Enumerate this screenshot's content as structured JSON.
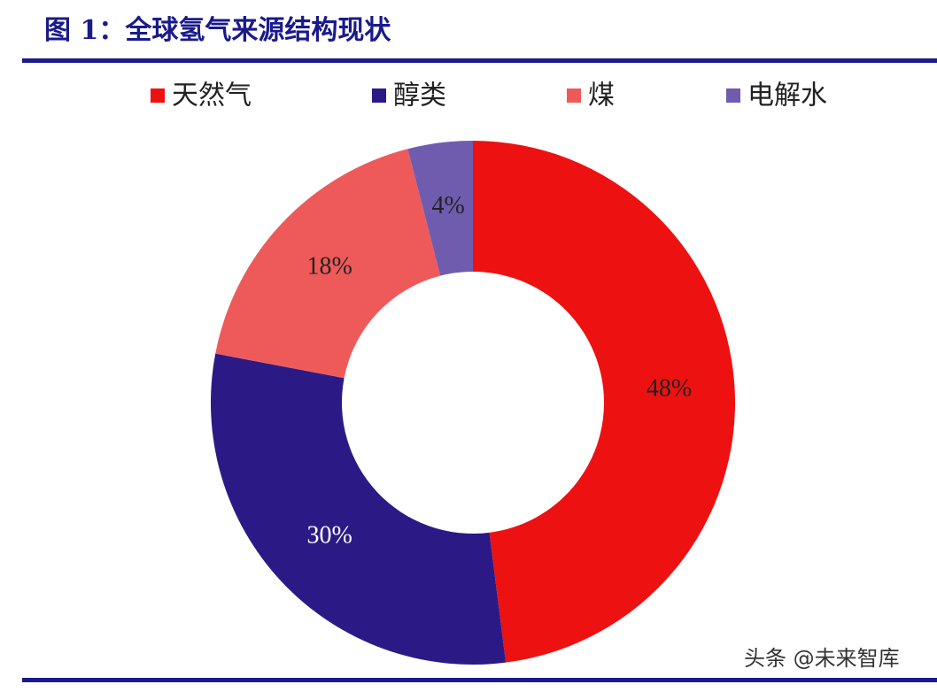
{
  "chart_data": {
    "type": "pie",
    "title": "图 1：全球氢气来源结构现状",
    "categories": [
      "天然气",
      "醇类",
      "煤",
      "电解水"
    ],
    "values": [
      48,
      30,
      18,
      4
    ],
    "value_labels": [
      "48%",
      "30%",
      "18%",
      "4%"
    ],
    "colors": [
      "#ee1111",
      "#2b1a86",
      "#ee5a5a",
      "#6f5cae"
    ],
    "hole": true
  },
  "watermark": "头条 @未来智库"
}
